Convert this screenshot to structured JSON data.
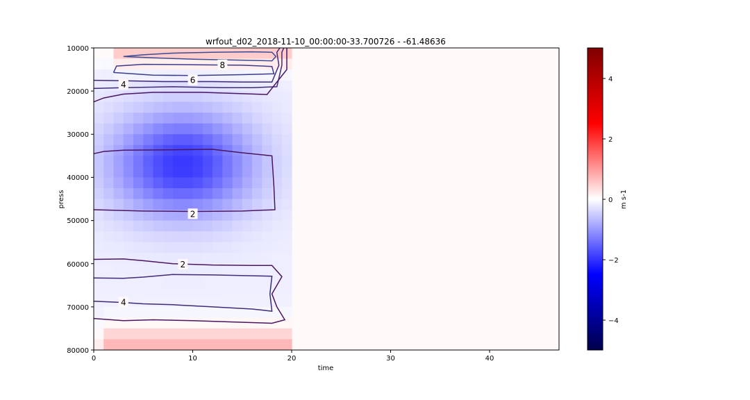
{
  "chart_data": {
    "type": "heatmap",
    "title": "wrfout_d02_2018-11-10_00:00:00-33.700726 - -61.48636",
    "xlabel": "time",
    "ylabel": "press",
    "xlim": [
      0,
      47
    ],
    "ylim": [
      80000,
      10000
    ],
    "y_inverted": true,
    "xticks": [
      "0",
      "10",
      "20",
      "30",
      "40"
    ],
    "yticks": [
      "10000",
      "20000",
      "30000",
      "40000",
      "50000",
      "60000",
      "70000",
      "80000"
    ],
    "colorbar": {
      "label": "m s-1",
      "range": [
        -5,
        5
      ],
      "ticks": [
        "4",
        "2",
        "0",
        "−2",
        "−4"
      ],
      "colormap": "seismic",
      "colors": {
        "low": "#00004c",
        "mid": "#ffffff",
        "high": "#800000"
      }
    },
    "contour_labels": [
      {
        "text": "8",
        "x": 13,
        "y": 14000
      },
      {
        "text": "6",
        "x": 10,
        "y": 17500
      },
      {
        "text": "4",
        "x": 3,
        "y": 18500
      },
      {
        "text": "2",
        "x": 10,
        "y": 48500
      },
      {
        "text": "2",
        "x": 9,
        "y": 60200
      },
      {
        "text": "4",
        "x": 3,
        "y": 69000
      }
    ],
    "contours": [
      {
        "level": 8,
        "points": [
          [
            3,
            12000
          ],
          [
            5,
            11600
          ],
          [
            8,
            11200
          ],
          [
            12,
            11000
          ],
          [
            16,
            10900
          ],
          [
            18,
            11000
          ],
          [
            18.4,
            12000
          ],
          [
            18,
            13000
          ],
          [
            14,
            12800
          ],
          [
            10,
            12600
          ],
          [
            6,
            12300
          ],
          [
            3,
            12000
          ]
        ]
      },
      {
        "level": 6,
        "points": [
          [
            2,
            15700
          ],
          [
            2.3,
            14200
          ],
          [
            5,
            13800
          ],
          [
            10,
            13900
          ],
          [
            15,
            14000
          ],
          [
            18,
            14300
          ],
          [
            18.2,
            16000
          ],
          [
            15,
            16200
          ],
          [
            10,
            16400
          ],
          [
            6,
            16300
          ],
          [
            2,
            15700
          ]
        ]
      },
      {
        "level": 4,
        "points": [
          [
            0,
            17500
          ],
          [
            3,
            17600
          ],
          [
            7,
            17800
          ],
          [
            12,
            17800
          ],
          [
            15,
            17900
          ],
          [
            18,
            17900
          ],
          [
            18.7,
            14000
          ],
          [
            18.5,
            11000
          ],
          [
            18.8,
            10000
          ]
        ]
      },
      {
        "level": 4,
        "points": [
          [
            0,
            19400
          ],
          [
            3,
            19200
          ],
          [
            8,
            19000
          ],
          [
            13,
            19200
          ],
          [
            16,
            19200
          ],
          [
            18.5,
            19000
          ],
          [
            19,
            14000
          ],
          [
            19,
            11000
          ],
          [
            19.2,
            10000
          ]
        ]
      },
      {
        "level": 2,
        "points": [
          [
            0,
            22500
          ],
          [
            1,
            21600
          ],
          [
            3,
            20700
          ],
          [
            6,
            20300
          ],
          [
            11,
            20300
          ],
          [
            15,
            20600
          ],
          [
            17.5,
            20800
          ],
          [
            19.5,
            15000
          ],
          [
            19.5,
            10000
          ]
        ]
      },
      {
        "level": 2,
        "points": [
          [
            0,
            34500
          ],
          [
            1,
            34000
          ],
          [
            3,
            33700
          ],
          [
            8,
            33600
          ],
          [
            12,
            33500
          ],
          [
            15,
            34300
          ],
          [
            18,
            35000
          ],
          [
            18.2,
            42000
          ],
          [
            18.3,
            47500
          ],
          [
            15,
            47800
          ],
          [
            10,
            47900
          ],
          [
            5,
            47800
          ],
          [
            2,
            47600
          ],
          [
            0,
            47500
          ]
        ]
      },
      {
        "level": 2,
        "points": [
          [
            0,
            59000
          ],
          [
            3,
            58900
          ],
          [
            5,
            59300
          ],
          [
            8,
            60000
          ],
          [
            12,
            60300
          ],
          [
            16,
            60400
          ],
          [
            18,
            60400
          ],
          [
            19,
            63000
          ],
          [
            18,
            67000
          ],
          [
            18.5,
            70000
          ],
          [
            19.3,
            73000
          ],
          [
            18,
            73800
          ],
          [
            14,
            73500
          ],
          [
            10,
            73200
          ],
          [
            6,
            73000
          ],
          [
            3,
            73200
          ],
          [
            0,
            72700
          ]
        ]
      },
      {
        "level": 4,
        "points": [
          [
            0,
            63300
          ],
          [
            3,
            63400
          ],
          [
            5,
            63100
          ],
          [
            8,
            62500
          ],
          [
            12,
            62600
          ],
          [
            16,
            62800
          ],
          [
            18,
            62900
          ],
          [
            17.8,
            67000
          ],
          [
            18,
            71000
          ],
          [
            16,
            70500
          ],
          [
            12,
            70000
          ],
          [
            8,
            69500
          ],
          [
            5,
            69300
          ],
          [
            3,
            69000
          ],
          [
            0,
            68700
          ]
        ]
      }
    ]
  }
}
